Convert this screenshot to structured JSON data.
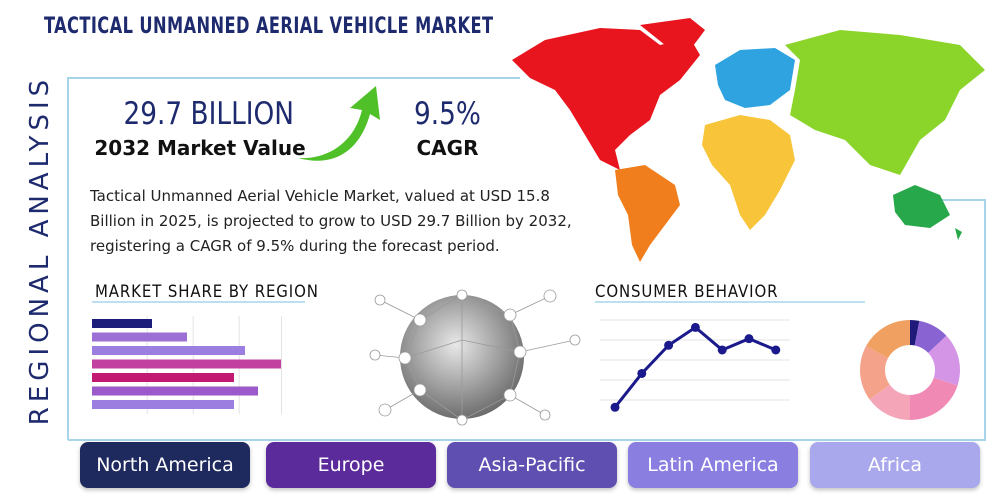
{
  "title": "TACTICAL UNMANNED AERIAL VEHICLE MARKET",
  "side_label": "REGIONAL ANALYSIS",
  "stats": [
    {
      "value": "29.7 BILLION",
      "label": "2032 Market Value"
    },
    {
      "value": "9.5%",
      "label": "CAGR"
    }
  ],
  "description": "Tactical Unmanned Aerial Vehicle Market, valued at USD 15.8 Billion in 2025, is projected to grow to USD 29.7 Billion by 2032, registering a CAGR of 9.5% during the forecast period.",
  "market_share": {
    "title": "MARKET SHARE BY REGION",
    "xlim": [
      0,
      200
    ],
    "values": [
      60,
      95,
      153,
      189,
      142,
      166,
      142
    ],
    "colors": [
      "#1c1c7a",
      "#9b6fd6",
      "#9b7ee0",
      "#c2409f",
      "#c21a72",
      "#9b59c9",
      "#9b7ee0"
    ]
  },
  "consumer_behavior": {
    "title": "CONSUMER BEHAVIOR",
    "ylim": [
      0,
      100
    ],
    "values": [
      5,
      41,
      71,
      90,
      66,
      78,
      66
    ],
    "color": "#1a1a8c"
  },
  "donut": {
    "values": [
      3,
      10,
      17,
      20,
      15,
      18,
      17
    ],
    "colors": [
      "#1f1a7a",
      "#8a63d2",
      "#d495e6",
      "#f08ab4",
      "#f4a6b8",
      "#f5a28a",
      "#f0a060"
    ]
  },
  "regions": [
    "North America",
    "Europe",
    "Asia-Pacific",
    "Latin America",
    "Africa"
  ],
  "region_colors": [
    "#1e2a5e",
    "#5b2a9b",
    "#5e4fb0",
    "#8a7ee0",
    "#a9a8ec"
  ]
}
